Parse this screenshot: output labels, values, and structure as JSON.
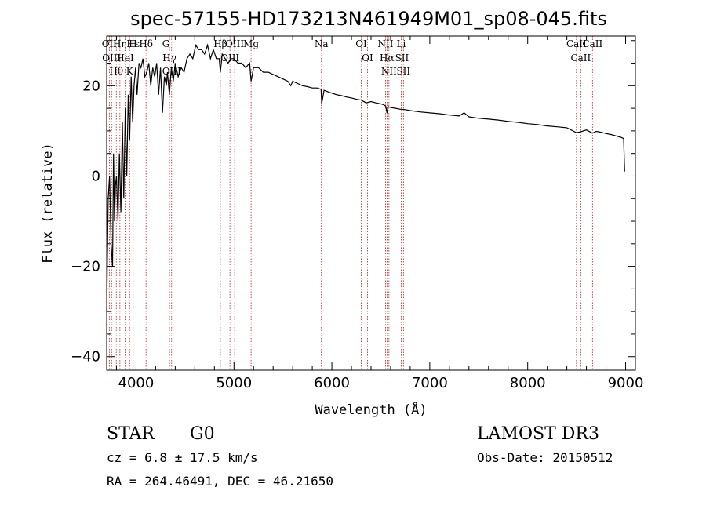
{
  "chart_data": {
    "type": "line",
    "title": "spec-57155-HD173213N461949M01_sp08-045.fits",
    "xlabel": "Wavelength (Å)",
    "ylabel": "Flux (relative)",
    "xlim": [
      3700,
      9100
    ],
    "ylim": [
      -43,
      31
    ],
    "x_ticks": [
      4000,
      5000,
      6000,
      7000,
      8000,
      9000
    ],
    "y_ticks": [
      -40,
      -20,
      0,
      20
    ],
    "x_tick_labels": [
      "4000",
      "5000",
      "6000",
      "7000",
      "8000",
      "9000"
    ],
    "y_tick_labels": [
      "−40",
      "−20",
      "0",
      "20"
    ],
    "series": [
      {
        "name": "flux",
        "color": "#000000",
        "x": [
          3700,
          3715,
          3730,
          3745,
          3760,
          3770,
          3780,
          3790,
          3800,
          3815,
          3830,
          3845,
          3860,
          3875,
          3890,
          3905,
          3920,
          3935,
          3950,
          3965,
          3980,
          3995,
          4010,
          4030,
          4050,
          4070,
          4090,
          4110,
          4130,
          4150,
          4170,
          4190,
          4210,
          4230,
          4250,
          4270,
          4290,
          4310,
          4320,
          4340,
          4360,
          4380,
          4400,
          4430,
          4460,
          4490,
          4520,
          4550,
          4580,
          4610,
          4640,
          4670,
          4700,
          4730,
          4760,
          4790,
          4820,
          4850,
          4861,
          4880,
          4910,
          4940,
          4970,
          5000,
          5040,
          5080,
          5120,
          5160,
          5175,
          5200,
          5250,
          5300,
          5350,
          5400,
          5450,
          5500,
          5550,
          5580,
          5600,
          5650,
          5700,
          5750,
          5800,
          5850,
          5890,
          5896,
          5920,
          5980,
          6050,
          6100,
          6150,
          6200,
          6250,
          6300,
          6350,
          6400,
          6450,
          6500,
          6530,
          6550,
          6563,
          6575,
          6600,
          6650,
          6700,
          6750,
          6800,
          6900,
          7000,
          7100,
          7200,
          7300,
          7350,
          7400,
          7500,
          7600,
          7700,
          7800,
          7900,
          8000,
          8100,
          8200,
          8300,
          8400,
          8498,
          8542,
          8600,
          8662,
          8700,
          8750,
          8800,
          8850,
          8900,
          8950,
          8980,
          8990
        ],
        "y": [
          -30,
          -5,
          0,
          -15,
          -20,
          5,
          -10,
          -2,
          0,
          -10,
          5,
          -8,
          12,
          -5,
          15,
          0,
          18,
          8,
          22,
          12,
          20,
          24,
          18,
          25,
          24,
          26,
          22,
          23,
          25,
          20,
          24,
          22,
          25,
          18,
          24,
          14,
          22,
          20,
          23,
          18,
          24,
          21,
          25,
          22,
          24,
          23,
          26,
          27,
          26,
          29,
          28,
          28,
          27,
          29,
          26,
          28,
          26,
          26,
          23,
          27,
          26,
          25,
          26,
          26,
          25,
          25,
          24,
          25,
          21,
          24,
          24,
          23,
          23,
          22.5,
          22,
          21.5,
          21,
          20,
          21,
          20.5,
          20,
          19.8,
          19.5,
          19.5,
          19.2,
          16,
          19,
          18.5,
          18,
          17.8,
          17.5,
          17.3,
          17,
          16.8,
          16.2,
          16.5,
          16.2,
          16,
          15.8,
          15.5,
          14,
          15.4,
          15.2,
          15,
          14.8,
          14.7,
          14.5,
          14.2,
          14,
          13.8,
          13.5,
          13.3,
          14,
          13.1,
          12.8,
          12.6,
          12.4,
          12.1,
          11.9,
          11.6,
          11.4,
          11.1,
          10.9,
          10.7,
          9.6,
          9.8,
          10.2,
          9.5,
          9.9,
          9.7,
          9.4,
          9.2,
          8.9,
          8.6,
          8.3,
          1
        ]
      }
    ],
    "spectral_lines": [
      {
        "label": "Hθ",
        "wavelength": 3798
      },
      {
        "label": "OII",
        "wavelength": 3727
      },
      {
        "label": "OIII",
        "wavelength": 3750
      },
      {
        "label": "HeI",
        "wavelength": 3889
      },
      {
        "label": "Hη",
        "wavelength": 3835
      },
      {
        "label": "K",
        "wavelength": 3934
      },
      {
        "label": "H",
        "wavelength": 3968
      },
      {
        "label": "Hε",
        "wavelength": 3970
      },
      {
        "label": "Hδ",
        "wavelength": 4102
      },
      {
        "label": "G",
        "wavelength": 4305
      },
      {
        "label": "Hγ",
        "wavelength": 4341
      },
      {
        "label": "OIII",
        "wavelength": 4363
      },
      {
        "label": "Hβ",
        "wavelength": 4861
      },
      {
        "label": "OIII",
        "wavelength": 4959
      },
      {
        "label": "OIII",
        "wavelength": 5007
      },
      {
        "label": "Mg",
        "wavelength": 5175
      },
      {
        "label": "Na",
        "wavelength": 5893
      },
      {
        "label": "OI",
        "wavelength": 6300
      },
      {
        "label": "OI",
        "wavelength": 6364
      },
      {
        "label": "NII",
        "wavelength": 6548
      },
      {
        "label": "Hα",
        "wavelength": 6563
      },
      {
        "label": "NII",
        "wavelength": 6583
      },
      {
        "label": "Li",
        "wavelength": 6708
      },
      {
        "label": "SII",
        "wavelength": 6716
      },
      {
        "label": "SII",
        "wavelength": 6731
      },
      {
        "label": "CaII",
        "wavelength": 8498
      },
      {
        "label": "CaII",
        "wavelength": 8542
      },
      {
        "label": "CaII",
        "wavelength": 8662
      }
    ]
  },
  "info": {
    "object_class": "STAR",
    "subclass": "G0",
    "survey": "LAMOST DR3",
    "redshift_text": "cz = 6.8 ± 17.5 km/s",
    "obs_date_text": "Obs-Date: 20150512",
    "coords_text": "RA = 264.46491, DEC =  46.21650"
  },
  "colors": {
    "spectrum": "#000000",
    "line_marker": "#b22222",
    "axes": "#000000"
  }
}
